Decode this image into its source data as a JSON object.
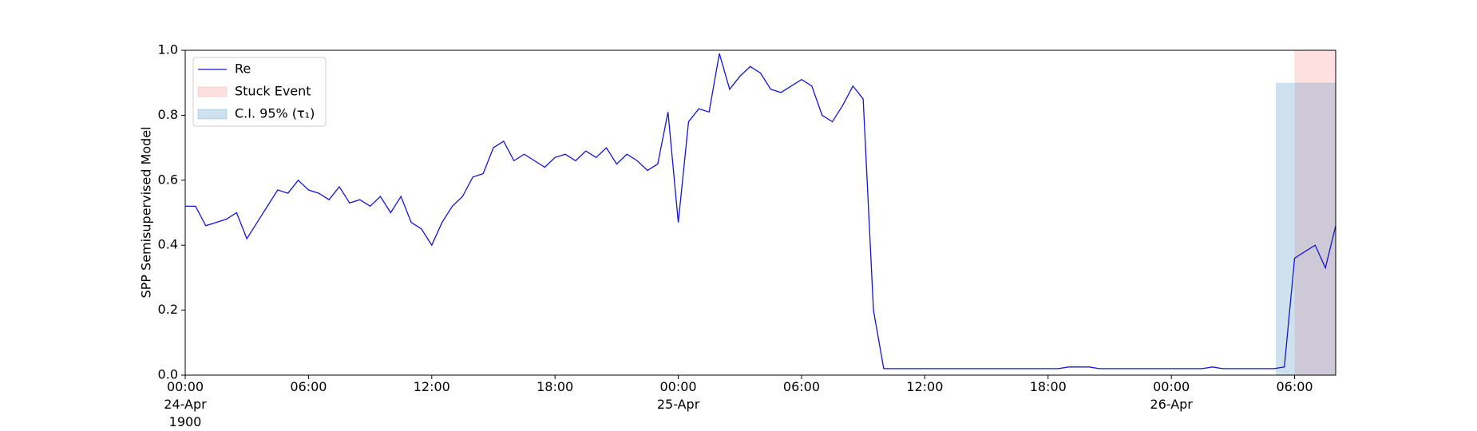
{
  "chart_data": {
    "type": "line",
    "ylabel": "SPP Semisupervised Model",
    "x": [
      "1900-04-24 00:00",
      "1900-04-24 00:30",
      "1900-04-24 01:00",
      "1900-04-24 01:30",
      "1900-04-24 02:00",
      "1900-04-24 02:30",
      "1900-04-24 03:00",
      "1900-04-24 03:30",
      "1900-04-24 04:00",
      "1900-04-24 04:30",
      "1900-04-24 05:00",
      "1900-04-24 05:30",
      "1900-04-24 06:00",
      "1900-04-24 06:30",
      "1900-04-24 07:00",
      "1900-04-24 07:30",
      "1900-04-24 08:00",
      "1900-04-24 08:30",
      "1900-04-24 09:00",
      "1900-04-24 09:30",
      "1900-04-24 10:00",
      "1900-04-24 10:30",
      "1900-04-24 11:00",
      "1900-04-24 11:30",
      "1900-04-24 12:00",
      "1900-04-24 12:30",
      "1900-04-24 13:00",
      "1900-04-24 13:30",
      "1900-04-24 14:00",
      "1900-04-24 14:30",
      "1900-04-24 15:00",
      "1900-04-24 15:30",
      "1900-04-24 16:00",
      "1900-04-24 16:30",
      "1900-04-24 17:00",
      "1900-04-24 17:30",
      "1900-04-24 18:00",
      "1900-04-24 18:30",
      "1900-04-24 19:00",
      "1900-04-24 19:30",
      "1900-04-24 20:00",
      "1900-04-24 20:30",
      "1900-04-24 21:00",
      "1900-04-24 21:30",
      "1900-04-24 22:00",
      "1900-04-24 22:30",
      "1900-04-24 23:00",
      "1900-04-24 23:30",
      "1900-04-25 00:00",
      "1900-04-25 00:30",
      "1900-04-25 01:00",
      "1900-04-25 01:30",
      "1900-04-25 02:00",
      "1900-04-25 02:30",
      "1900-04-25 03:00",
      "1900-04-25 03:30",
      "1900-04-25 04:00",
      "1900-04-25 04:30",
      "1900-04-25 05:00",
      "1900-04-25 05:30",
      "1900-04-25 06:00",
      "1900-04-25 06:30",
      "1900-04-25 07:00",
      "1900-04-25 07:30",
      "1900-04-25 08:00",
      "1900-04-25 08:30",
      "1900-04-25 09:00",
      "1900-04-25 09:30",
      "1900-04-25 10:00",
      "1900-04-25 10:30",
      "1900-04-25 11:00",
      "1900-04-25 11:30",
      "1900-04-25 12:00",
      "1900-04-25 12:30",
      "1900-04-25 13:00",
      "1900-04-25 13:30",
      "1900-04-25 14:00",
      "1900-04-25 14:30",
      "1900-04-25 15:00",
      "1900-04-25 15:30",
      "1900-04-25 16:00",
      "1900-04-25 16:30",
      "1900-04-25 17:00",
      "1900-04-25 17:30",
      "1900-04-25 18:00",
      "1900-04-25 18:30",
      "1900-04-25 19:00",
      "1900-04-25 19:30",
      "1900-04-25 20:00",
      "1900-04-25 20:30",
      "1900-04-25 21:00",
      "1900-04-25 21:30",
      "1900-04-25 22:00",
      "1900-04-25 22:30",
      "1900-04-25 23:00",
      "1900-04-25 23:30",
      "1900-04-26 00:00",
      "1900-04-26 00:30",
      "1900-04-26 01:00",
      "1900-04-26 01:30",
      "1900-04-26 02:00",
      "1900-04-26 02:30",
      "1900-04-26 03:00",
      "1900-04-26 03:30",
      "1900-04-26 04:00",
      "1900-04-26 04:30",
      "1900-04-26 05:00",
      "1900-04-26 05:30",
      "1900-04-26 06:00",
      "1900-04-26 06:30",
      "1900-04-26 07:00",
      "1900-04-26 07:30",
      "1900-04-26 08:00"
    ],
    "series": [
      {
        "name": "Re",
        "color": "#1414d2",
        "values": [
          0.52,
          0.52,
          0.46,
          0.47,
          0.48,
          0.5,
          0.42,
          0.47,
          0.52,
          0.57,
          0.56,
          0.6,
          0.57,
          0.56,
          0.54,
          0.58,
          0.53,
          0.54,
          0.52,
          0.55,
          0.5,
          0.55,
          0.47,
          0.45,
          0.4,
          0.47,
          0.52,
          0.55,
          0.61,
          0.62,
          0.7,
          0.72,
          0.66,
          0.68,
          0.66,
          0.64,
          0.67,
          0.68,
          0.66,
          0.69,
          0.67,
          0.7,
          0.65,
          0.68,
          0.66,
          0.63,
          0.65,
          0.81,
          0.47,
          0.78,
          0.82,
          0.81,
          0.99,
          0.88,
          0.92,
          0.95,
          0.93,
          0.88,
          0.87,
          0.89,
          0.91,
          0.89,
          0.8,
          0.78,
          0.83,
          0.89,
          0.85,
          0.2,
          0.02,
          0.02,
          0.02,
          0.02,
          0.02,
          0.02,
          0.02,
          0.02,
          0.02,
          0.02,
          0.02,
          0.02,
          0.02,
          0.02,
          0.02,
          0.02,
          0.02,
          0.02,
          0.025,
          0.025,
          0.025,
          0.02,
          0.02,
          0.02,
          0.02,
          0.02,
          0.02,
          0.02,
          0.02,
          0.02,
          0.02,
          0.02,
          0.025,
          0.02,
          0.02,
          0.02,
          0.02,
          0.02,
          0.02,
          0.025,
          0.36,
          0.38,
          0.4,
          0.33,
          0.46
        ]
      }
    ],
    "regions": [
      {
        "name": "Stuck Event",
        "color": "#ff0000",
        "opacity": 0.12,
        "x": [
          "1900-04-26 06:00",
          "1900-04-26 08:00"
        ],
        "y": [
          0,
          1.0
        ]
      },
      {
        "name": "C.I. 95% (τ₁)",
        "color": "#1f77b4",
        "opacity": 0.22,
        "x": [
          "1900-04-26 05:05",
          "1900-04-26 08:00"
        ],
        "y": [
          0,
          0.9
        ]
      }
    ],
    "xlim": [
      "1900-04-24 00:00",
      "1900-04-26 08:00"
    ],
    "xticks": [
      {
        "value": "1900-04-24 00:00",
        "label": "00:00\n24-Apr\n1900"
      },
      {
        "value": "1900-04-24 06:00",
        "label": "06:00"
      },
      {
        "value": "1900-04-24 12:00",
        "label": "12:00"
      },
      {
        "value": "1900-04-24 18:00",
        "label": "18:00"
      },
      {
        "value": "1900-04-25 00:00",
        "label": "00:00\n25-Apr"
      },
      {
        "value": "1900-04-25 06:00",
        "label": "06:00"
      },
      {
        "value": "1900-04-25 12:00",
        "label": "12:00"
      },
      {
        "value": "1900-04-25 18:00",
        "label": "18:00"
      },
      {
        "value": "1900-04-26 00:00",
        "label": "00:00\n26-Apr"
      },
      {
        "value": "1900-04-26 06:00",
        "label": "06:00"
      }
    ],
    "ylim": [
      0,
      1.0
    ],
    "yticks": [
      {
        "value": 0,
        "label": "0.0"
      },
      0.2,
      0.4,
      0.6,
      0.8,
      {
        "value": 1.0,
        "label": "1.0"
      }
    ],
    "grid": false,
    "legend": "upper left"
  }
}
